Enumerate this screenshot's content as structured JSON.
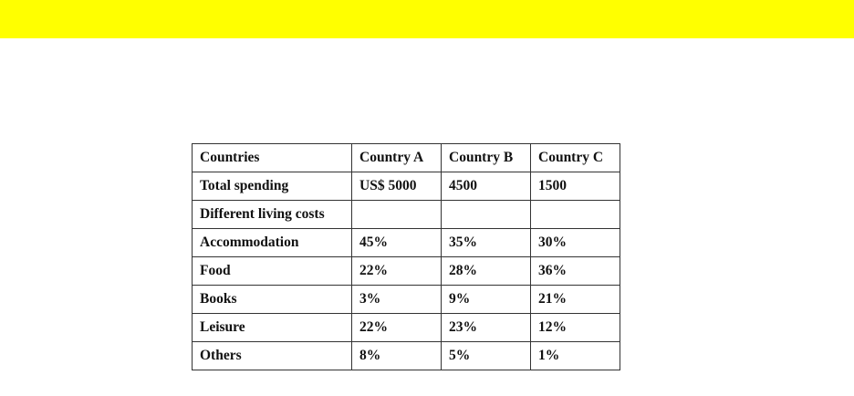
{
  "table": {
    "header": [
      "Countries",
      "Country A",
      "Country B",
      "Country C"
    ],
    "rows": [
      [
        "Total spending",
        "US$ 5000",
        "4500",
        "1500"
      ],
      [
        "Different living costs",
        "",
        "",
        ""
      ],
      [
        "Accommodation",
        "45%",
        "35%",
        "30%"
      ],
      [
        "Food",
        "22%",
        "28%",
        "36%"
      ],
      [
        "Books",
        "3%",
        "9%",
        "21%"
      ],
      [
        "Leisure",
        "22%",
        "23%",
        "12%"
      ],
      [
        "Others",
        "8%",
        "5%",
        "1%"
      ]
    ]
  },
  "colors": {
    "banner": "#ffff00"
  }
}
